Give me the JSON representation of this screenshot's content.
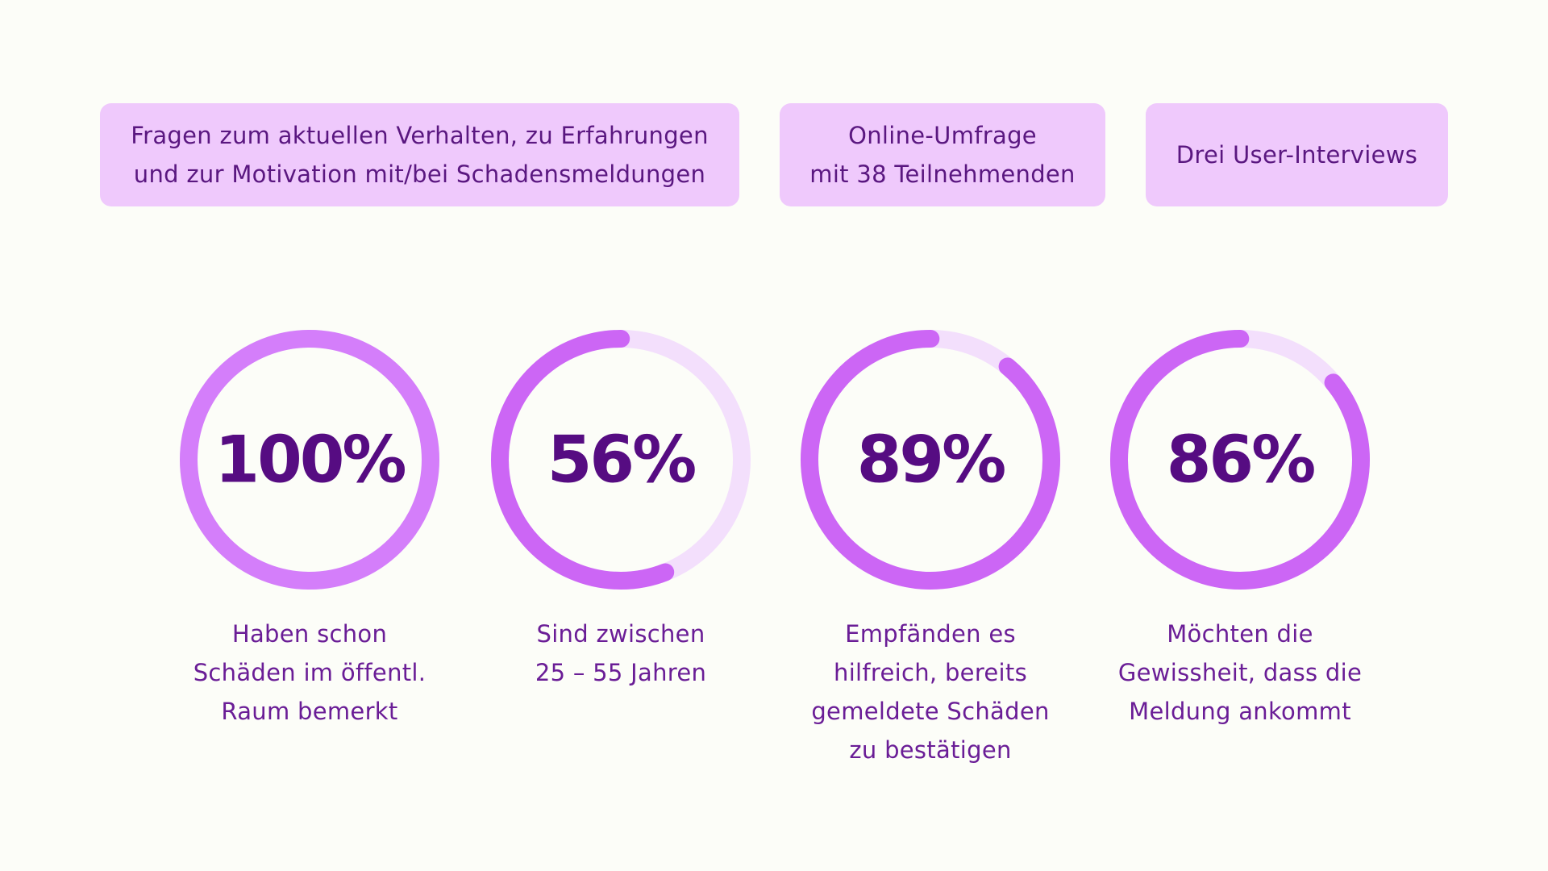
{
  "info_boxes": [
    {
      "lines": [
        "Fragen zum aktuellen Verhalten, zu Erfahrungen",
        "und zur Motivation mit/bei Schadensmeldungen"
      ]
    },
    {
      "lines": [
        "Online-Umfrage",
        "mit 38 Teilnehmenden"
      ]
    },
    {
      "lines": [
        "Drei User-Interviews"
      ]
    }
  ],
  "colors": {
    "background": "#fcfdf8",
    "box_fill": "#efc9fc",
    "ring_fill": "#cc66f5",
    "ring_fill_full": "#d47efa",
    "ring_track": "#f3dffc",
    "value_text": "#560c82",
    "caption_text": "#6a1d96"
  },
  "chart_data": {
    "type": "donut",
    "series": [
      {
        "value": 100,
        "label": "100%",
        "caption": [
          "Haben schon",
          "Schäden im öffentl.",
          "Raum bemerkt"
        ]
      },
      {
        "value": 56,
        "label": "56%",
        "caption": [
          "Sind zwischen",
          "25 – 55 Jahren"
        ]
      },
      {
        "value": 89,
        "label": "89%",
        "caption": [
          "Empfänden es",
          "hilfreich, bereits",
          "gemeldete Schäden",
          "zu bestätigen"
        ]
      },
      {
        "value": 86,
        "label": "86%",
        "caption": [
          "Möchten die",
          "Gewissheit, dass die",
          "Meldung ankommt"
        ]
      }
    ]
  }
}
